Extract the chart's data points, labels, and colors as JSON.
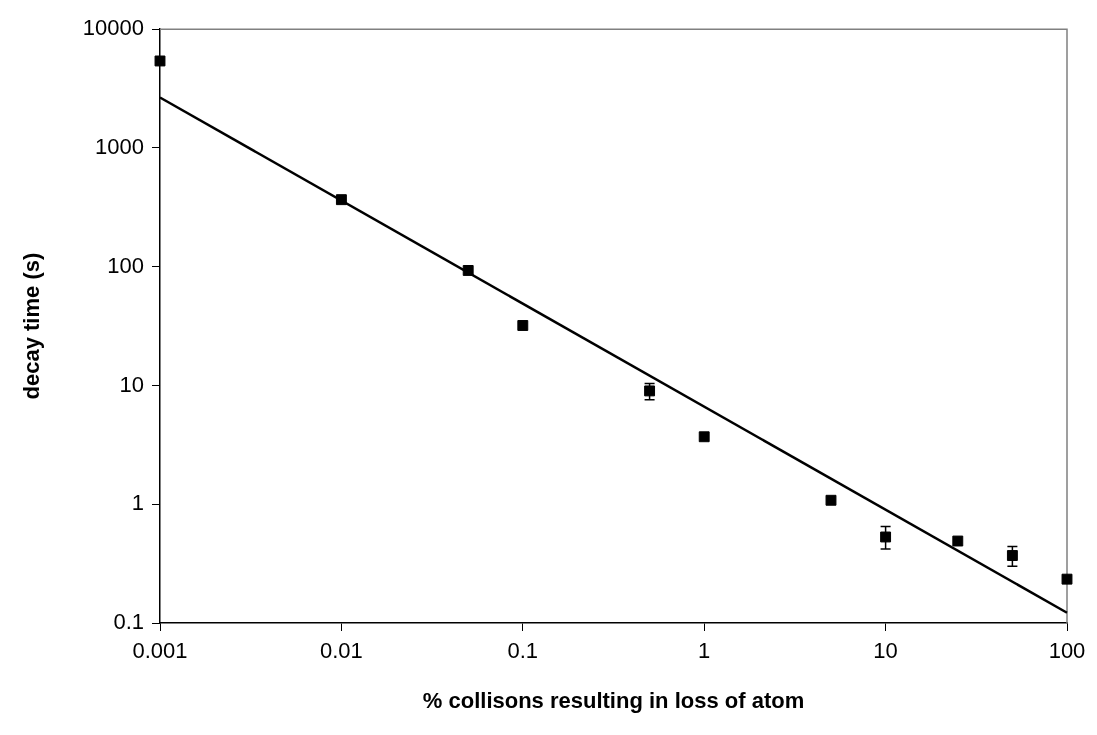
{
  "chart_data": {
    "type": "scatter",
    "xlabel": "% collisons resulting in loss of atom",
    "ylabel": "decay time (s)",
    "log": "xy",
    "xlim": [
      0.001,
      100
    ],
    "ylim": [
      0.1,
      10000
    ],
    "xticks": [
      0.001,
      0.01,
      0.1,
      1,
      10,
      100
    ],
    "yticks": [
      0.1,
      1,
      10,
      100,
      1000,
      10000
    ],
    "grid": false,
    "legend": false,
    "marker": "square",
    "x": [
      0.001,
      0.01,
      0.05,
      0.1,
      0.5,
      1,
      5,
      10,
      25,
      50,
      100
    ],
    "series": [
      {
        "type": "scatter",
        "color": "#000000",
        "values": [
          5400,
          367,
          93,
          32,
          9.0,
          3.7,
          1.08,
          0.53,
          0.49,
          0.37,
          0.234
        ],
        "errors": [
          null,
          null,
          null,
          null,
          [
            7.6,
            10.4
          ],
          null,
          null,
          [
            0.42,
            0.65
          ],
          null,
          [
            0.3,
            0.44
          ],
          null
        ]
      },
      {
        "type": "line",
        "color": "#000000",
        "marker": "none",
        "x": [
          0.001,
          100
        ],
        "values": [
          2660,
          0.122
        ]
      }
    ]
  }
}
